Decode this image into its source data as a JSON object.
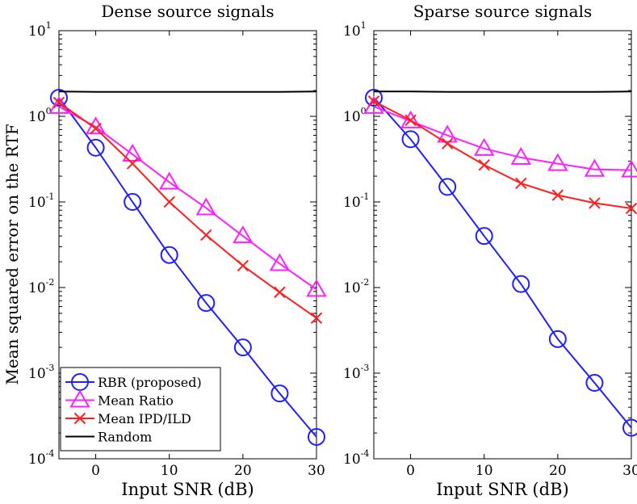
{
  "chart_data": {
    "type": "line",
    "ylabel": "Mean squared error on the RTF",
    "xlabel": "Input SNR (dB)",
    "yscale": "log",
    "ylim": [
      0.0001,
      10
    ],
    "xlim": [
      -5,
      30
    ],
    "x_ticks": [
      0,
      10,
      20,
      30
    ],
    "y_ticks": [
      {
        "base": "10",
        "exp": "1",
        "value": 10
      },
      {
        "base": "10",
        "exp": "0",
        "value": 1
      },
      {
        "base": "10",
        "exp": "-1",
        "value": 0.1
      },
      {
        "base": "10",
        "exp": "-2",
        "value": 0.01
      },
      {
        "base": "10",
        "exp": "-3",
        "value": 0.001
      },
      {
        "base": "10",
        "exp": "-4",
        "value": 0.0001
      }
    ],
    "grid": false,
    "legend_position": "bottom-left of first panel",
    "legend": [
      {
        "label": "RBR (proposed)",
        "color": "#1f1fff",
        "marker": "circle"
      },
      {
        "label": "Mean Ratio",
        "color": "#ff1fff",
        "marker": "triangle"
      },
      {
        "label": "Mean IPD/ILD",
        "color": "#ff1f1f",
        "marker": "x"
      },
      {
        "label": "Random",
        "color": "#000000",
        "marker": "none"
      }
    ],
    "x": [
      -5,
      0,
      5,
      10,
      15,
      20,
      25,
      30
    ],
    "panels": [
      {
        "title": "Dense source signals",
        "series": [
          {
            "name": "RBR (proposed)",
            "color": "#1f1fff",
            "marker": "circle",
            "values": [
              1.65,
              0.43,
              0.1,
              0.024,
              0.0066,
              0.002,
              0.00058,
              0.00018
            ]
          },
          {
            "name": "Mean Ratio",
            "color": "#ff1fff",
            "marker": "triangle",
            "values": [
              1.3,
              0.75,
              0.36,
              0.17,
              0.085,
              0.04,
              0.019,
              0.0095
            ]
          },
          {
            "name": "Mean IPD/ILD",
            "color": "#ff1f1f",
            "marker": "x",
            "values": [
              1.45,
              0.72,
              0.28,
              0.1,
              0.041,
              0.018,
              0.0088,
              0.0044
            ]
          },
          {
            "name": "Random",
            "color": "#000000",
            "marker": "none",
            "values": [
              1.95,
              1.93,
              1.93,
              1.93,
              1.93,
              1.93,
              1.93,
              1.95
            ]
          }
        ]
      },
      {
        "title": "Sparse source signals",
        "series": [
          {
            "name": "RBR (proposed)",
            "color": "#1f1fff",
            "marker": "circle",
            "values": [
              1.65,
              0.54,
              0.15,
              0.04,
              0.011,
              0.0025,
              0.00077,
              0.00023
            ]
          },
          {
            "name": "Mean Ratio",
            "color": "#ff1fff",
            "marker": "triangle",
            "values": [
              1.3,
              0.88,
              0.6,
              0.42,
              0.33,
              0.28,
              0.24,
              0.235
            ]
          },
          {
            "name": "Mean IPD/ILD",
            "color": "#ff1f1f",
            "marker": "x",
            "values": [
              1.5,
              0.9,
              0.48,
              0.27,
              0.165,
              0.12,
              0.097,
              0.084
            ]
          },
          {
            "name": "Random",
            "color": "#000000",
            "marker": "none",
            "values": [
              1.95,
              1.95,
              1.93,
              1.93,
              1.93,
              1.93,
              1.93,
              1.95
            ]
          }
        ]
      }
    ]
  }
}
